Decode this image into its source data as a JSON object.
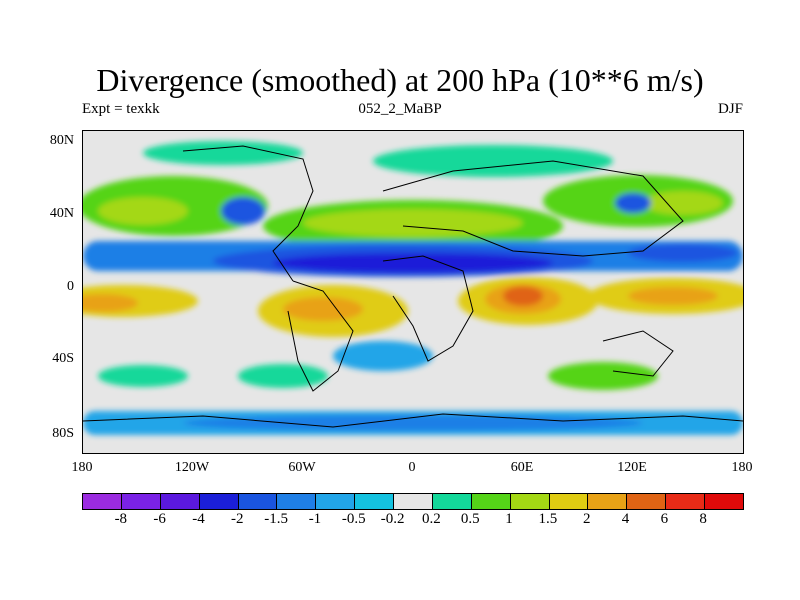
{
  "title": "Divergence (smoothed) at 200 hPa (10**6 m/s)",
  "subtitle": {
    "left": "Expt = texkk",
    "center": "052_2_MaBP",
    "right": "DJF"
  },
  "map": {
    "y_tick_labels": [
      "80N",
      "40N",
      "0",
      "40S",
      "80S"
    ],
    "x_tick_labels": [
      "180",
      "120W",
      "60W",
      "0",
      "60E",
      "120E",
      "180"
    ]
  },
  "colorbar": {
    "labels": [
      "-8",
      "-6",
      "-4",
      "-2",
      "-1.5",
      "-1",
      "-0.5",
      "-0.2",
      "0.2",
      "0.5",
      "1",
      "1.5",
      "2",
      "4",
      "6",
      "8"
    ],
    "colors": [
      "#9b2be0",
      "#7a22e6",
      "#5b19df",
      "#1b1fd8",
      "#1a55e0",
      "#1f7fe6",
      "#22a5e8",
      "#14c2e0",
      "#e6e6e6",
      "#13d89a",
      "#55d418",
      "#a4d814",
      "#e0cc12",
      "#e8a216",
      "#e06414",
      "#e82b17",
      "#e00a0a"
    ]
  }
}
